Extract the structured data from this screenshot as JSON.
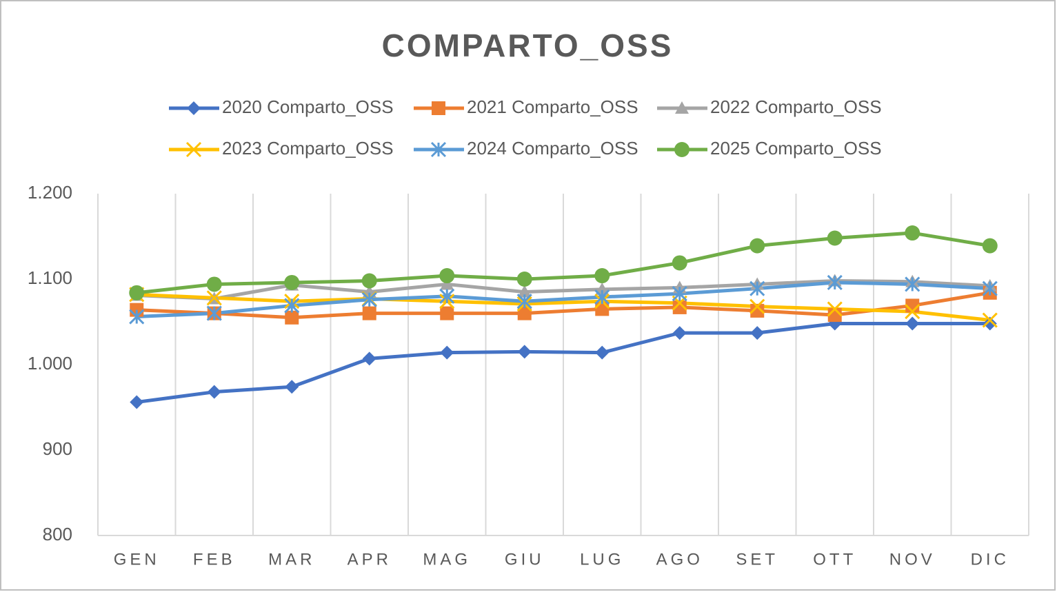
{
  "chart_data": {
    "type": "line",
    "title": "COMPARTO_OSS",
    "categories": [
      "GEN",
      "FEB",
      "MAR",
      "APR",
      "MAG",
      "GIU",
      "LUG",
      "AGO",
      "SET",
      "OTT",
      "NOV",
      "DIC"
    ],
    "series": [
      {
        "name": "2020 Comparto_OSS",
        "color": "#4472c4",
        "marker": "diamond",
        "values": [
          956,
          968,
          974,
          1007,
          1014,
          1015,
          1014,
          1037,
          1037,
          1048,
          1048,
          1048
        ]
      },
      {
        "name": "2021 Comparto_OSS",
        "color": "#ed7d31",
        "marker": "square",
        "values": [
          1064,
          1060,
          1055,
          1060,
          1060,
          1060,
          1065,
          1067,
          1063,
          1058,
          1069,
          1084
        ]
      },
      {
        "name": "2022 Comparto_OSS",
        "color": "#a5a5a5",
        "marker": "triangle",
        "values": [
          1081,
          1077,
          1093,
          1085,
          1094,
          1085,
          1088,
          1090,
          1094,
          1098,
          1097,
          1092
        ]
      },
      {
        "name": "2023 Comparto_OSS",
        "color": "#ffc000",
        "marker": "x",
        "values": [
          1082,
          1078,
          1074,
          1077,
          1074,
          1071,
          1074,
          1072,
          1068,
          1065,
          1062,
          1052
        ]
      },
      {
        "name": "2024 Comparto_OSS",
        "color": "#5b9bd5",
        "marker": "asterisk",
        "values": [
          1056,
          1060,
          1069,
          1076,
          1080,
          1074,
          1079,
          1083,
          1089,
          1096,
          1094,
          1089
        ]
      },
      {
        "name": "2025 Comparto_OSS",
        "color": "#70ad47",
        "marker": "circle",
        "values": [
          1084,
          1094,
          1096,
          1098,
          1104,
          1100,
          1104,
          1119,
          1139,
          1148,
          1154,
          1139
        ]
      }
    ],
    "ylim": [
      800,
      1200
    ],
    "yticks": [
      800,
      900,
      {
        "value": 1000,
        "label": "1.000"
      },
      {
        "value": 1100,
        "label": "1.100"
      },
      {
        "value": 1200,
        "label": "1.200"
      }
    ],
    "grid": "vertical",
    "legend": "top"
  }
}
